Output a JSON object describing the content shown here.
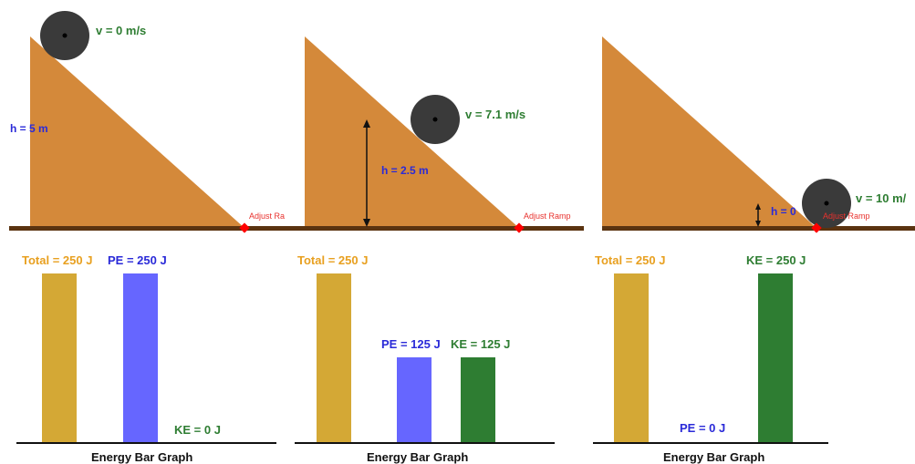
{
  "colors": {
    "ramp": "#d4893a",
    "ground": "#5a3310",
    "wheel": "#3a3a3a",
    "total_bar": "#d4a835",
    "pe_bar": "#6666ff",
    "ke_bar": "#2e7d32",
    "handle": "#ff0000"
  },
  "panels": [
    {
      "velocity_label": "v = 0 m/s",
      "height_label": "h = 5 m",
      "adjust_label": "Adjust Ra",
      "graph": {
        "title": "Energy Bar Graph",
        "total_label": "Total = 250 J",
        "pe_label": "PE = 250 J",
        "ke_label": "KE = 0 J",
        "total": 250,
        "pe": 250,
        "ke": 0
      }
    },
    {
      "velocity_label": "v = 7.1 m/s",
      "height_label": "h = 2.5 m",
      "adjust_label": "Adjust Ramp",
      "graph": {
        "title": "Energy Bar Graph",
        "total_label": "Total = 250 J",
        "pe_label": "PE = 125 J",
        "ke_label": "KE = 125 J",
        "total": 250,
        "pe": 125,
        "ke": 125
      }
    },
    {
      "velocity_label": "v = 10 m/",
      "height_label": "h = 0",
      "adjust_label": "Adjust Ramp",
      "graph": {
        "title": "Energy Bar Graph",
        "total_label": "Total = 250 J",
        "pe_label": "PE = 0 J",
        "ke_label": "KE = 250 J",
        "total": 250,
        "pe": 0,
        "ke": 250
      }
    }
  ]
}
